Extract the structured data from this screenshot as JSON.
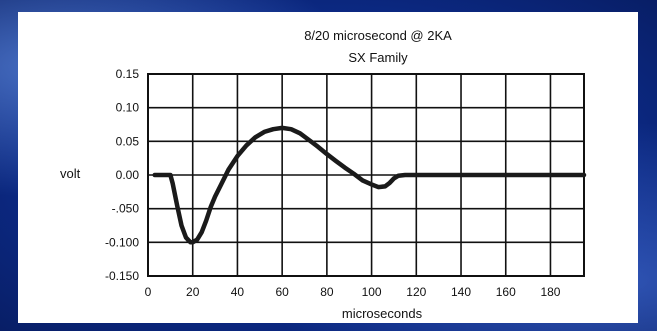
{
  "chart_data": {
    "type": "line",
    "title": "8/20 microsecond @ 2KA",
    "subtitle": "SX Family",
    "xlabel": "microseconds",
    "ylabel": "volt",
    "xlim": [
      0,
      195
    ],
    "ylim": [
      -0.15,
      0.15
    ],
    "x_ticks": [
      0,
      20,
      40,
      60,
      80,
      100,
      120,
      140,
      160,
      180
    ],
    "x_tick_labels": [
      "0",
      "20",
      "40",
      "60",
      "80",
      "100",
      "120",
      "140",
      "160",
      "180"
    ],
    "y_ticks": [
      0.15,
      0.1,
      0.05,
      0.0,
      -0.05,
      -0.1,
      -0.15
    ],
    "y_tick_labels": [
      "0.15",
      "0.10",
      "0.05",
      "0.00",
      "-.050",
      "-0.100",
      "-0.150"
    ],
    "grid": true,
    "series": [
      {
        "color": "#1a1a1a",
        "x": [
          3,
          10,
          11,
          13,
          15,
          17,
          19,
          20,
          22,
          24,
          26,
          28,
          30,
          33,
          36,
          40,
          44,
          48,
          52,
          56,
          60,
          64,
          68,
          72,
          76,
          80,
          84,
          88,
          92,
          96,
          100,
          103,
          106,
          108,
          110,
          112,
          115,
          120,
          140,
          160,
          180,
          195
        ],
        "y": [
          0.0,
          0.0,
          -0.012,
          -0.045,
          -0.075,
          -0.093,
          -0.1,
          -0.1,
          -0.096,
          -0.085,
          -0.068,
          -0.048,
          -0.032,
          -0.012,
          0.008,
          0.028,
          0.044,
          0.056,
          0.064,
          0.068,
          0.07,
          0.068,
          0.062,
          0.052,
          0.042,
          0.031,
          0.021,
          0.011,
          0.002,
          -0.008,
          -0.014,
          -0.018,
          -0.017,
          -0.012,
          -0.005,
          -0.001,
          0.0,
          0.0,
          0.0,
          0.0,
          0.0,
          0.0
        ]
      }
    ]
  }
}
